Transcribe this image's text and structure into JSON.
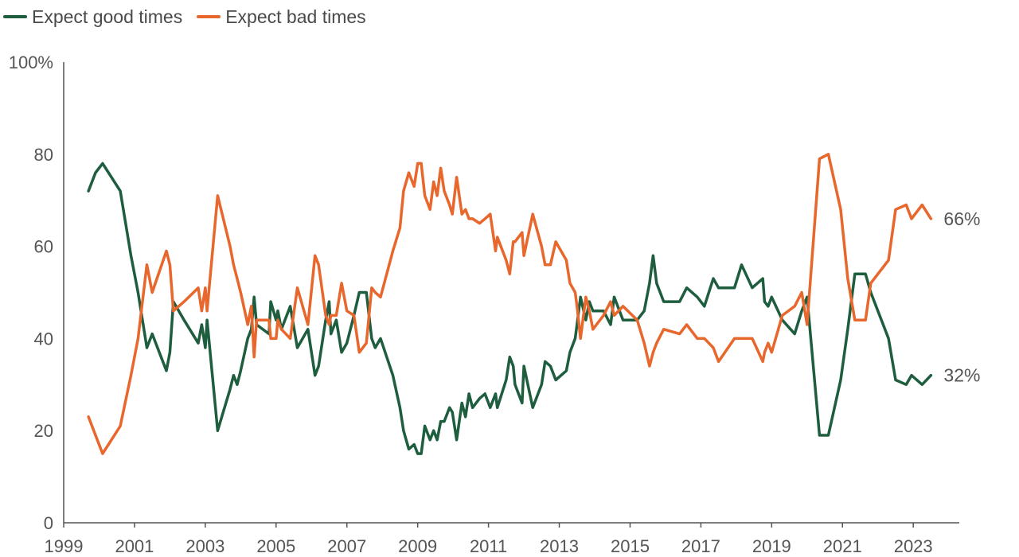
{
  "chart_data": {
    "type": "line",
    "title": "",
    "xlabel": "",
    "ylabel": "",
    "xlim": [
      1999,
      2024.3
    ],
    "ylim": [
      0,
      100
    ],
    "x_ticks": [
      "1999",
      "2001",
      "2003",
      "2005",
      "2007",
      "2009",
      "2011",
      "2013",
      "2015",
      "2017",
      "2019",
      "2021",
      "2023"
    ],
    "y_ticks": [
      {
        "value": 0,
        "label": "0"
      },
      {
        "value": 20,
        "label": "20"
      },
      {
        "value": 40,
        "label": "40"
      },
      {
        "value": 60,
        "label": "60"
      },
      {
        "value": 80,
        "label": "80"
      },
      {
        "value": 100,
        "label": "100%"
      }
    ],
    "legend_position": "top-left",
    "grid": false,
    "series": [
      {
        "name": "Expect good times",
        "color": "#1e5e3f",
        "end_label": "32%",
        "points": [
          [
            1999.7,
            72
          ],
          [
            1999.9,
            76
          ],
          [
            2000.1,
            78
          ],
          [
            2000.6,
            72
          ],
          [
            2000.9,
            58
          ],
          [
            2001.1,
            50
          ],
          [
            2001.35,
            38
          ],
          [
            2001.5,
            41
          ],
          [
            2001.9,
            33
          ],
          [
            2002.0,
            37
          ],
          [
            2002.1,
            48
          ],
          [
            2002.4,
            44
          ],
          [
            2002.8,
            39
          ],
          [
            2002.9,
            43
          ],
          [
            2003.0,
            38
          ],
          [
            2003.05,
            44
          ],
          [
            2003.35,
            20
          ],
          [
            2003.7,
            29
          ],
          [
            2003.8,
            32
          ],
          [
            2003.9,
            30
          ],
          [
            2004.0,
            33
          ],
          [
            2004.2,
            40
          ],
          [
            2004.3,
            42
          ],
          [
            2004.38,
            49
          ],
          [
            2004.45,
            43
          ],
          [
            2004.8,
            41
          ],
          [
            2004.85,
            48
          ],
          [
            2005.0,
            44
          ],
          [
            2005.05,
            46
          ],
          [
            2005.15,
            42
          ],
          [
            2005.4,
            47
          ],
          [
            2005.6,
            38
          ],
          [
            2005.9,
            42
          ],
          [
            2006.1,
            32
          ],
          [
            2006.2,
            34
          ],
          [
            2006.4,
            44
          ],
          [
            2006.5,
            48
          ],
          [
            2006.55,
            41
          ],
          [
            2006.7,
            44
          ],
          [
            2006.85,
            37
          ],
          [
            2007.0,
            39
          ],
          [
            2007.2,
            45
          ],
          [
            2007.35,
            50
          ],
          [
            2007.55,
            50
          ],
          [
            2007.7,
            40
          ],
          [
            2007.8,
            38
          ],
          [
            2007.95,
            40
          ],
          [
            2008.3,
            32
          ],
          [
            2008.5,
            25
          ],
          [
            2008.6,
            20
          ],
          [
            2008.75,
            16
          ],
          [
            2008.9,
            17
          ],
          [
            2009.0,
            15
          ],
          [
            2009.1,
            15
          ],
          [
            2009.2,
            21
          ],
          [
            2009.35,
            18
          ],
          [
            2009.45,
            20
          ],
          [
            2009.55,
            18
          ],
          [
            2009.65,
            22
          ],
          [
            2009.75,
            22
          ],
          [
            2009.9,
            25
          ],
          [
            2009.98,
            24
          ],
          [
            2010.1,
            18
          ],
          [
            2010.25,
            26
          ],
          [
            2010.35,
            23
          ],
          [
            2010.45,
            28
          ],
          [
            2010.55,
            25
          ],
          [
            2010.75,
            27
          ],
          [
            2010.9,
            28
          ],
          [
            2011.05,
            25
          ],
          [
            2011.2,
            28
          ],
          [
            2011.25,
            25
          ],
          [
            2011.5,
            31
          ],
          [
            2011.6,
            36
          ],
          [
            2011.7,
            34
          ],
          [
            2011.75,
            30
          ],
          [
            2011.95,
            26
          ],
          [
            2012.0,
            34
          ],
          [
            2012.25,
            25
          ],
          [
            2012.5,
            30
          ],
          [
            2012.6,
            35
          ],
          [
            2012.75,
            34
          ],
          [
            2012.9,
            31
          ],
          [
            2013.2,
            33
          ],
          [
            2013.3,
            37
          ],
          [
            2013.45,
            40
          ],
          [
            2013.5,
            43
          ],
          [
            2013.6,
            49
          ],
          [
            2013.75,
            44
          ],
          [
            2013.85,
            48
          ],
          [
            2013.95,
            46
          ],
          [
            2014.25,
            46
          ],
          [
            2014.45,
            43
          ],
          [
            2014.55,
            49
          ],
          [
            2014.8,
            44
          ],
          [
            2015.2,
            44
          ],
          [
            2015.4,
            46
          ],
          [
            2015.55,
            52
          ],
          [
            2015.65,
            58
          ],
          [
            2015.75,
            52
          ],
          [
            2015.95,
            48
          ],
          [
            2016.4,
            48
          ],
          [
            2016.6,
            51
          ],
          [
            2016.9,
            49
          ],
          [
            2017.1,
            47
          ],
          [
            2017.35,
            53
          ],
          [
            2017.5,
            51
          ],
          [
            2017.95,
            51
          ],
          [
            2018.15,
            56
          ],
          [
            2018.45,
            51
          ],
          [
            2018.75,
            53
          ],
          [
            2018.8,
            48
          ],
          [
            2018.9,
            47
          ],
          [
            2019.0,
            49
          ],
          [
            2019.3,
            44
          ],
          [
            2019.65,
            41
          ],
          [
            2019.85,
            46
          ],
          [
            2020.0,
            49
          ],
          [
            2020.35,
            19
          ],
          [
            2020.6,
            19
          ],
          [
            2020.95,
            31
          ],
          [
            2021.15,
            42
          ],
          [
            2021.35,
            54
          ],
          [
            2021.65,
            54
          ],
          [
            2021.8,
            50
          ],
          [
            2022.3,
            40
          ],
          [
            2022.5,
            31
          ],
          [
            2022.8,
            30
          ],
          [
            2022.95,
            32
          ],
          [
            2023.25,
            30
          ],
          [
            2023.5,
            32
          ]
        ]
      },
      {
        "name": "Expect bad times",
        "color": "#e8672c",
        "end_label": "66%",
        "points": [
          [
            1999.7,
            23
          ],
          [
            1999.9,
            19
          ],
          [
            2000.1,
            15
          ],
          [
            2000.6,
            21
          ],
          [
            2000.9,
            32
          ],
          [
            2001.1,
            40
          ],
          [
            2001.35,
            56
          ],
          [
            2001.5,
            50
          ],
          [
            2001.9,
            59
          ],
          [
            2002.0,
            56
          ],
          [
            2002.1,
            46
          ],
          [
            2002.4,
            48
          ],
          [
            2002.8,
            51
          ],
          [
            2002.9,
            46
          ],
          [
            2003.0,
            51
          ],
          [
            2003.05,
            46
          ],
          [
            2003.35,
            71
          ],
          [
            2003.7,
            60
          ],
          [
            2003.8,
            56
          ],
          [
            2003.9,
            53
          ],
          [
            2004.0,
            50
          ],
          [
            2004.2,
            43
          ],
          [
            2004.3,
            47
          ],
          [
            2004.38,
            36
          ],
          [
            2004.45,
            44
          ],
          [
            2004.8,
            44
          ],
          [
            2004.85,
            40
          ],
          [
            2005.0,
            40
          ],
          [
            2005.05,
            44
          ],
          [
            2005.15,
            42
          ],
          [
            2005.4,
            40
          ],
          [
            2005.6,
            51
          ],
          [
            2005.9,
            43
          ],
          [
            2006.1,
            58
          ],
          [
            2006.2,
            56
          ],
          [
            2006.4,
            45
          ],
          [
            2006.5,
            43
          ],
          [
            2006.55,
            45
          ],
          [
            2006.7,
            45
          ],
          [
            2006.85,
            52
          ],
          [
            2007.0,
            46
          ],
          [
            2007.2,
            45
          ],
          [
            2007.35,
            37
          ],
          [
            2007.55,
            39
          ],
          [
            2007.7,
            51
          ],
          [
            2007.8,
            50
          ],
          [
            2007.95,
            49
          ],
          [
            2008.3,
            59
          ],
          [
            2008.5,
            64
          ],
          [
            2008.6,
            72
          ],
          [
            2008.75,
            76
          ],
          [
            2008.9,
            73
          ],
          [
            2009.0,
            78
          ],
          [
            2009.1,
            78
          ],
          [
            2009.2,
            71
          ],
          [
            2009.35,
            68
          ],
          [
            2009.45,
            74
          ],
          [
            2009.55,
            71
          ],
          [
            2009.65,
            77
          ],
          [
            2009.75,
            72
          ],
          [
            2009.9,
            69
          ],
          [
            2009.98,
            67
          ],
          [
            2010.1,
            75
          ],
          [
            2010.25,
            67
          ],
          [
            2010.35,
            68
          ],
          [
            2010.45,
            66
          ],
          [
            2010.55,
            66
          ],
          [
            2010.75,
            65
          ],
          [
            2010.9,
            66
          ],
          [
            2011.05,
            67
          ],
          [
            2011.2,
            59
          ],
          [
            2011.25,
            62
          ],
          [
            2011.5,
            57
          ],
          [
            2011.6,
            54
          ],
          [
            2011.7,
            61
          ],
          [
            2011.75,
            61
          ],
          [
            2011.95,
            63
          ],
          [
            2012.0,
            58
          ],
          [
            2012.25,
            67
          ],
          [
            2012.5,
            60
          ],
          [
            2012.6,
            56
          ],
          [
            2012.75,
            56
          ],
          [
            2012.9,
            61
          ],
          [
            2013.2,
            57
          ],
          [
            2013.3,
            52
          ],
          [
            2013.45,
            50
          ],
          [
            2013.5,
            47
          ],
          [
            2013.6,
            40
          ],
          [
            2013.75,
            49
          ],
          [
            2013.85,
            46
          ],
          [
            2013.95,
            42
          ],
          [
            2014.25,
            45
          ],
          [
            2014.45,
            48
          ],
          [
            2014.55,
            45
          ],
          [
            2014.8,
            47
          ],
          [
            2015.2,
            44
          ],
          [
            2015.4,
            39
          ],
          [
            2015.55,
            34
          ],
          [
            2015.65,
            37
          ],
          [
            2015.75,
            39
          ],
          [
            2015.95,
            42
          ],
          [
            2016.4,
            41
          ],
          [
            2016.6,
            43
          ],
          [
            2016.9,
            40
          ],
          [
            2017.1,
            40
          ],
          [
            2017.35,
            38
          ],
          [
            2017.5,
            35
          ],
          [
            2017.95,
            40
          ],
          [
            2018.15,
            40
          ],
          [
            2018.45,
            40
          ],
          [
            2018.75,
            35
          ],
          [
            2018.8,
            37
          ],
          [
            2018.9,
            39
          ],
          [
            2019.0,
            37
          ],
          [
            2019.3,
            45
          ],
          [
            2019.65,
            47
          ],
          [
            2019.85,
            50
          ],
          [
            2020.0,
            43
          ],
          [
            2020.35,
            79
          ],
          [
            2020.6,
            80
          ],
          [
            2020.95,
            68
          ],
          [
            2021.15,
            53
          ],
          [
            2021.35,
            44
          ],
          [
            2021.65,
            44
          ],
          [
            2021.8,
            52
          ],
          [
            2022.3,
            57
          ],
          [
            2022.5,
            68
          ],
          [
            2022.8,
            69
          ],
          [
            2022.95,
            66
          ],
          [
            2023.25,
            69
          ],
          [
            2023.5,
            66
          ]
        ]
      }
    ]
  }
}
